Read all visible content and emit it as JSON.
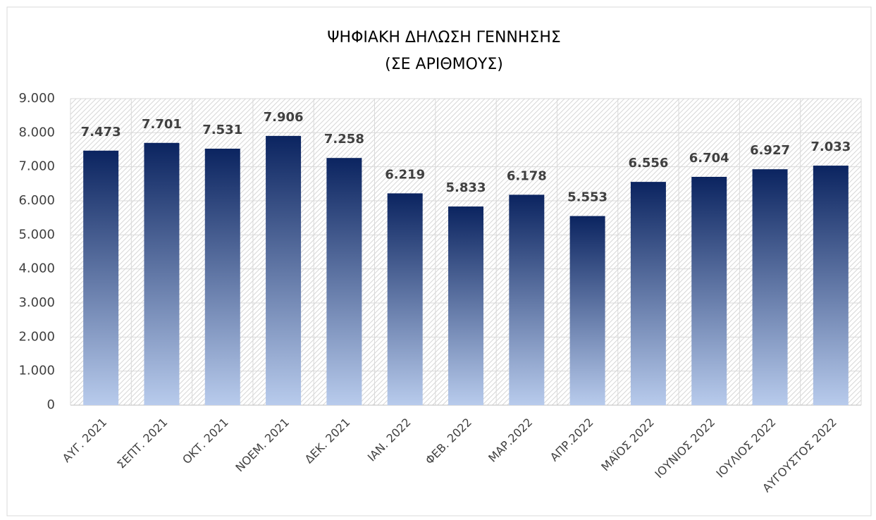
{
  "chart_data": {
    "type": "bar",
    "title": "ΨΗΦΙΑΚΗ ΔΗΛΩΣΗ  ΓΕΝΝΗΣΗΣ",
    "subtitle": "(ΣΕ ΑΡΙΘΜΟΥΣ)",
    "categories": [
      "ΑΥΓ. 2021",
      "ΣΕΠΤ. 2021",
      "ΟΚΤ. 2021",
      "ΝΟΕΜ. 2021",
      "ΔΕΚ. 2021",
      "ΙΑΝ. 2022",
      "ΦΕΒ. 2022",
      "ΜΑΡ.2022",
      "ΑΠΡ.2022",
      "ΜΑΪΟΣ 2022",
      "ΙΟΥΝΙΟΣ 2022",
      "ΙΟΥΛΙΟΣ 2022",
      "ΑΥΓΟΥΣΤΟΣ 2022"
    ],
    "values": [
      7473,
      7701,
      7531,
      7906,
      7258,
      6219,
      5833,
      6178,
      5553,
      6556,
      6704,
      6927,
      7033
    ],
    "value_labels": [
      "7.473",
      "7.701",
      "7.531",
      "7.906",
      "7.258",
      "6.219",
      "5.833",
      "6.178",
      "5.553",
      "6.556",
      "6.704",
      "6.927",
      "7.033"
    ],
    "gradient": [
      "#0b2460",
      "#b8cbec"
    ],
    "ylim": [
      0,
      9000
    ],
    "yticks": [
      0,
      {
        "value": 1000,
        "label": "1.000"
      },
      {
        "value": 2000,
        "label": "2.000"
      },
      {
        "value": 3000,
        "label": "3.000"
      },
      {
        "value": 4000,
        "label": "4.000"
      },
      {
        "value": 5000,
        "label": "5.000"
      },
      {
        "value": 6000,
        "label": "6.000"
      },
      {
        "value": 7000,
        "label": "7.000"
      },
      {
        "value": 8000,
        "label": "8.000"
      },
      {
        "value": 9000,
        "label": "9.000"
      }
    ],
    "grid": true
  }
}
